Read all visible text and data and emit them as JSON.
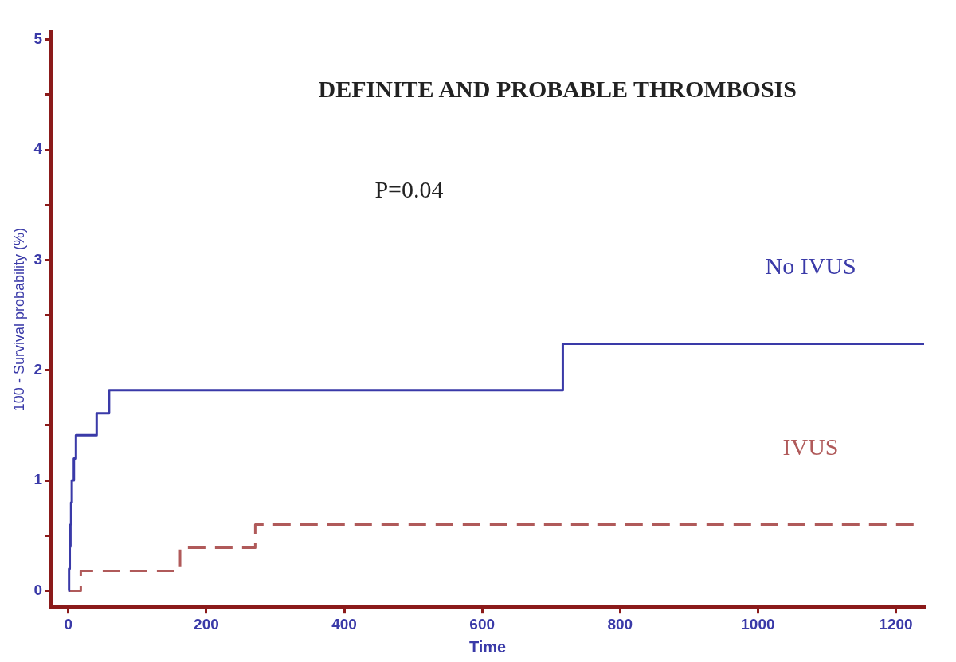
{
  "chart_data": {
    "type": "step",
    "title": "DEFINITE AND PROBABLE THROMBOSIS",
    "xlabel": "Time",
    "ylabel": "100 - Survival probability (%)",
    "annotations": [
      "P=0.04"
    ],
    "series": [
      {
        "name": "No IVUS",
        "color": "#3a3aa8",
        "line_style": "solid",
        "x": [
          0,
          1,
          2,
          3,
          4,
          5,
          8,
          11,
          41,
          59,
          717,
          1241
        ],
        "values": [
          0,
          0.2,
          0.4,
          0.6,
          0.8,
          1.0,
          1.2,
          1.41,
          1.61,
          1.82,
          2.24,
          2.24
        ]
      },
      {
        "name": "IVUS",
        "color": "#b05a5a",
        "line_style": "dashed",
        "x": [
          0,
          18,
          162,
          271,
          1228
        ],
        "values": [
          0,
          0.18,
          0.39,
          0.6,
          0.6
        ]
      }
    ],
    "xlim": [
      -25,
      1241
    ],
    "ylim": [
      -0.15,
      5.07
    ],
    "xticks": [
      0,
      200,
      400,
      600,
      800,
      1000,
      1200
    ],
    "yticks": [
      0,
      {
        "value": 0.5,
        "label": null
      },
      1,
      {
        "value": 1.5,
        "label": null
      },
      2,
      {
        "value": 2.5,
        "label": null
      },
      3,
      {
        "value": 3.5,
        "label": null
      },
      4,
      {
        "value": 4.5,
        "label": null
      },
      5
    ],
    "grid": false,
    "legend": false,
    "marker": "none"
  }
}
